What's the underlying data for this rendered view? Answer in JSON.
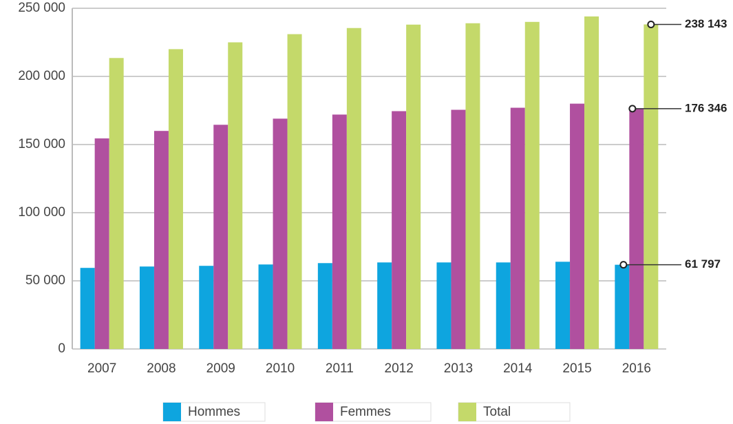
{
  "chart_data": {
    "type": "bar",
    "categories": [
      "2007",
      "2008",
      "2009",
      "2010",
      "2011",
      "2012",
      "2013",
      "2014",
      "2015",
      "2016"
    ],
    "series": [
      {
        "name": "Hommes",
        "color": "#0ea5df",
        "values": [
          59500,
          60500,
          61000,
          62000,
          63000,
          63500,
          63500,
          63500,
          64000,
          61797
        ],
        "value_labels": [
          null,
          null,
          null,
          null,
          null,
          null,
          null,
          null,
          null,
          "61 797"
        ]
      },
      {
        "name": "Femmes",
        "color": "#b0509f",
        "values": [
          154500,
          160000,
          164500,
          169000,
          172000,
          174500,
          175500,
          177000,
          180000,
          176346
        ],
        "value_labels": [
          null,
          null,
          null,
          null,
          null,
          null,
          null,
          null,
          null,
          "176 346"
        ]
      },
      {
        "name": "Total",
        "color": "#c4d96a",
        "values": [
          213500,
          220000,
          225000,
          231000,
          235500,
          238000,
          239000,
          240000,
          244000,
          238143
        ],
        "value_labels": [
          null,
          null,
          null,
          null,
          null,
          null,
          null,
          null,
          null,
          "238 143"
        ]
      }
    ],
    "ylim": [
      0,
      250000
    ],
    "yticks": [
      0,
      {
        "value": 50000,
        "label": "50 000"
      },
      {
        "value": 100000,
        "label": "100 000"
      },
      {
        "value": 150000,
        "label": "150 000"
      },
      {
        "value": 200000,
        "label": "200 000"
      },
      {
        "value": 250000,
        "label": "250 000"
      }
    ],
    "grid": true,
    "legend": "bottom"
  }
}
